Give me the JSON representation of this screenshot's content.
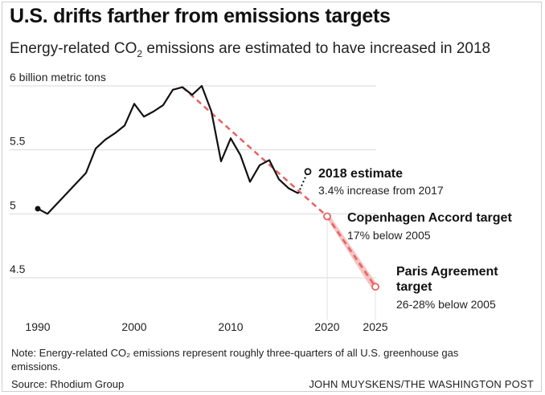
{
  "header": {
    "title": "U.S. drifts farther from emissions targets",
    "subtitle_pre": "Energy-related C",
    "subtitle_O": "O",
    "subtitle_sub": "2",
    "subtitle_post": " emissions are estimated to have increased in 2018"
  },
  "footer": {
    "note": "Note: Energy-related CO₂ emissions represent roughly three-quarters of all U.S. greenhouse gas emissions.",
    "source": "Source: Rhodium Group",
    "credit": "JOHN MUYSKENS/THE WASHINGTON POST"
  },
  "chart_data": {
    "type": "line",
    "title": "U.S. drifts farther from emissions targets",
    "ylabel": "6 billion metric tons",
    "xlim": [
      1990,
      2025
    ],
    "ylim": [
      4.5,
      6
    ],
    "x_ticks": [
      1990,
      2000,
      2010,
      2020,
      2025
    ],
    "y_ticks": [
      {
        "value": 6,
        "label": "6 billion metric tons"
      },
      {
        "value": 5.5,
        "label": "5.5"
      },
      {
        "value": 5,
        "label": "5"
      },
      {
        "value": 4.5,
        "label": "4.5"
      }
    ],
    "grid": true,
    "colors": {
      "actual": "#111111",
      "target": "#e8615f",
      "target_fill": "#f5b9b8"
    },
    "series": [
      {
        "x": [
          1990,
          1991,
          1992,
          1993,
          1994,
          1995,
          1996,
          1997,
          1998,
          1999,
          2000,
          2001,
          2002,
          2003,
          2004,
          2005,
          2006,
          2007,
          2008,
          2009,
          2010,
          2011,
          2012,
          2013,
          2014,
          2015,
          2016,
          2017
        ],
        "values": [
          5.04,
          5.0,
          5.08,
          5.16,
          5.24,
          5.32,
          5.51,
          5.58,
          5.63,
          5.69,
          5.86,
          5.76,
          5.8,
          5.85,
          5.97,
          5.99,
          5.93,
          6.0,
          5.8,
          5.41,
          5.59,
          5.46,
          5.25,
          5.38,
          5.42,
          5.27,
          5.2,
          5.16
        ]
      },
      {
        "x": [
          2017,
          2018
        ],
        "values": [
          5.16,
          5.33
        ]
      },
      {
        "x": [
          2005,
          2020,
          2025
        ],
        "values": [
          5.99,
          4.98,
          4.43
        ]
      }
    ],
    "annotations": [
      {
        "x": 2018,
        "y": 5.33,
        "label": "2018 estimate",
        "sublabel": "3.4% increase from 2017"
      },
      {
        "x": 2020,
        "y": 4.98,
        "label": "Copenhagen Accord target",
        "sublabel": "17% below 2005"
      },
      {
        "x": 2025,
        "y": 4.43,
        "label": "Paris Agreement target",
        "sublabel": "26-28% below 2005"
      }
    ]
  }
}
